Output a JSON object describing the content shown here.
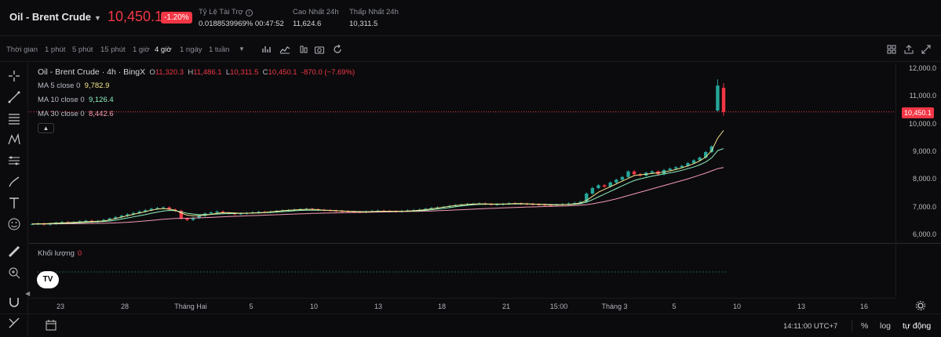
{
  "header": {
    "symbol": "Oil - Brent Crude",
    "price": "10,450.1",
    "change": "-1.20%",
    "funding_label": "Tỷ Lệ Tài Trợ",
    "funding_value": "0.0188539969% 00:47:52",
    "high_label": "Cao Nhất 24h",
    "high_value": "11,624.6",
    "low_label": "Thấp Nhất 24h",
    "low_value": "10,311.5"
  },
  "toolbar": {
    "timeframes": [
      "Thời gian",
      "1 phút",
      "5 phút",
      "15 phút",
      "1 giờ",
      "4 giờ",
      "1 ngày",
      "1 tuần"
    ],
    "active_timeframe": "4 giờ"
  },
  "legend": {
    "title": "Oil - Brent Crude · 4h · BingX",
    "o_label": "O",
    "o_value": "11,320.3",
    "h_label": "H",
    "h_value": "11,486.1",
    "l_label": "L",
    "l_value": "10,311.5",
    "c_label": "C",
    "c_value": "10,450.1",
    "change_text": "-870.0 (−7.69%)",
    "ma5_label": "MA 5 close 0",
    "ma5_value": "9,782.9",
    "ma10_label": "MA 10 close 0",
    "ma10_value": "9,126.4",
    "ma30_label": "MA 30 close 0",
    "ma30_value": "8,442.6",
    "collapse_icon": "chevron-up-icon"
  },
  "volume": {
    "label": "Khối lượng",
    "value": "0"
  },
  "price_axis": {
    "ticks": [
      "12,000.0",
      "11,000.0",
      "10,000.0",
      "9,000.0",
      "8,000.0",
      "7,000.0",
      "6,000.0"
    ],
    "last_price": "10,450.1"
  },
  "time_axis": {
    "labels": [
      "23",
      "28",
      "Tháng Hai",
      "5",
      "10",
      "13",
      "18",
      "21",
      "15:00",
      "Tháng 3",
      "5",
      "10",
      "13",
      "16"
    ]
  },
  "bottom": {
    "clock": "14:11:00 UTC+7",
    "percent": "%",
    "log": "log",
    "auto": "tự động"
  },
  "colors": {
    "up": "#26a69a",
    "down": "#f23645",
    "ma5": "#f5e68c",
    "ma10": "#8ef0c0",
    "ma30": "#f49ab4"
  },
  "chart_data": {
    "type": "candlestick",
    "ylim": [
      5800,
      12300
    ],
    "y_ticks": [
      12000,
      11000,
      10000,
      9000,
      8000,
      7000,
      6000
    ],
    "last_price": 10450.1,
    "closes": [
      6400,
      6420,
      6380,
      6410,
      6450,
      6470,
      6430,
      6460,
      6500,
      6520,
      6480,
      6510,
      6550,
      6600,
      6650,
      6700,
      6750,
      6800,
      6850,
      6900,
      6950,
      6980,
      7000,
      6920,
      6880,
      6600,
      6550,
      6620,
      6700,
      6780,
      6820,
      6850,
      6800,
      6780,
      6760,
      6780,
      6800,
      6820,
      6840,
      6830,
      6850,
      6870,
      6890,
      6900,
      6920,
      6940,
      6950,
      6930,
      6910,
      6900,
      6880,
      6870,
      6860,
      6850,
      6840,
      6830,
      6850,
      6870,
      6880,
      6870,
      6860,
      6850,
      6870,
      6890,
      6900,
      6920,
      6950,
      6980,
      7000,
      7020,
      7050,
      7080,
      7100,
      7120,
      7130,
      7140,
      7120,
      7100,
      7110,
      7130,
      7150,
      7140,
      7130,
      7120,
      7110,
      7100,
      7090,
      7080,
      7100,
      7120,
      7140,
      7160,
      7200,
      7500,
      7700,
      7800,
      7750,
      7900,
      8000,
      8100,
      8300,
      8200,
      8150,
      8250,
      8300,
      8200,
      8350,
      8400,
      8450,
      8500,
      8600,
      8700,
      8800,
      9000,
      9200,
      11400,
      10450
    ],
    "ma5": [
      6400,
      6410,
      6410,
      6420,
      6430,
      6440,
      6450,
      6460,
      6470,
      6480,
      6490,
      6500,
      6510,
      6550,
      6600,
      6650,
      6700,
      6750,
      6800,
      6850,
      6900,
      6940,
      6960,
      6940,
      6900,
      6800,
      6720,
      6700,
      6700,
      6720,
      6750,
      6790,
      6810,
      6810,
      6800,
      6790,
      6790,
      6800,
      6810,
      6820,
      6840,
      6860,
      6880,
      6900,
      6910,
      6920,
      6930,
      6930,
      6920,
      6900,
      6890,
      6880,
      6870,
      6860,
      6850,
      6840,
      6840,
      6850,
      6860,
      6860,
      6860,
      6860,
      6860,
      6870,
      6880,
      6900,
      6920,
      6950,
      6980,
      7010,
      7040,
      7070,
      7090,
      7110,
      7120,
      7130,
      7130,
      7120,
      7120,
      7120,
      7130,
      7140,
      7140,
      7130,
      7120,
      7110,
      7100,
      7090,
      7090,
      7100,
      7110,
      7130,
      7160,
      7250,
      7400,
      7550,
      7650,
      7750,
      7850,
      7950,
      8050,
      8150,
      8180,
      8200,
      8230,
      8250,
      8280,
      8320,
      8370,
      8430,
      8500,
      8580,
      8680,
      8820,
      9050,
      9500,
      9782
    ],
    "ma10": [
      6400,
      6405,
      6405,
      6410,
      6415,
      6420,
      6430,
      6440,
      6450,
      6460,
      6470,
      6480,
      6490,
      6510,
      6540,
      6580,
      6620,
      6660,
      6700,
      6740,
      6790,
      6830,
      6870,
      6890,
      6880,
      6840,
      6790,
      6760,
      6740,
      6740,
      6750,
      6760,
      6770,
      6780,
      6780,
      6790,
      6790,
      6800,
      6800,
      6810,
      6820,
      6830,
      6850,
      6860,
      6880,
      6890,
      6900,
      6900,
      6900,
      6900,
      6890,
      6880,
      6870,
      6860,
      6855,
      6850,
      6845,
      6850,
      6855,
      6860,
      6860,
      6860,
      6860,
      6865,
      6870,
      6880,
      6895,
      6915,
      6940,
      6965,
      6995,
      7025,
      7050,
      7075,
      7095,
      7110,
      7115,
      7115,
      7115,
      7115,
      7120,
      7125,
      7125,
      7125,
      7120,
      7115,
      7110,
      7105,
      7100,
      7100,
      7105,
      7115,
      7135,
      7190,
      7280,
      7380,
      7480,
      7580,
      7680,
      7780,
      7880,
      7970,
      8030,
      8080,
      8130,
      8170,
      8210,
      8250,
      8290,
      8340,
      8400,
      8460,
      8540,
      8640,
      8790,
      9050,
      9126
    ],
    "ma30": [
      6400,
      6400,
      6402,
      6404,
      6406,
      6408,
      6410,
      6412,
      6414,
      6416,
      6420,
      6424,
      6428,
      6434,
      6442,
      6452,
      6464,
      6478,
      6494,
      6512,
      6532,
      6552,
      6572,
      6588,
      6600,
      6604,
      6608,
      6614,
      6622,
      6632,
      6642,
      6652,
      6662,
      6672,
      6680,
      6688,
      6696,
      6704,
      6712,
      6720,
      6728,
      6736,
      6744,
      6752,
      6760,
      6768,
      6776,
      6784,
      6790,
      6796,
      6800,
      6804,
      6808,
      6812,
      6816,
      6820,
      6824,
      6828,
      6832,
      6836,
      6840,
      6844,
      6848,
      6852,
      6856,
      6860,
      6866,
      6872,
      6880,
      6888,
      6898,
      6908,
      6918,
      6928,
      6938,
      6948,
      6958,
      6966,
      6974,
      6982,
      6990,
      6998,
      7006,
      7014,
      7020,
      7026,
      7032,
      7038,
      7044,
      7050,
      7058,
      7068,
      7080,
      7100,
      7130,
      7170,
      7210,
      7260,
      7310,
      7370,
      7430,
      7490,
      7550,
      7610,
      7670,
      7730,
      7790,
      7850,
      7910,
      7970,
      8030,
      8100,
      8170,
      8240,
      8320,
      8400,
      8442
    ]
  }
}
